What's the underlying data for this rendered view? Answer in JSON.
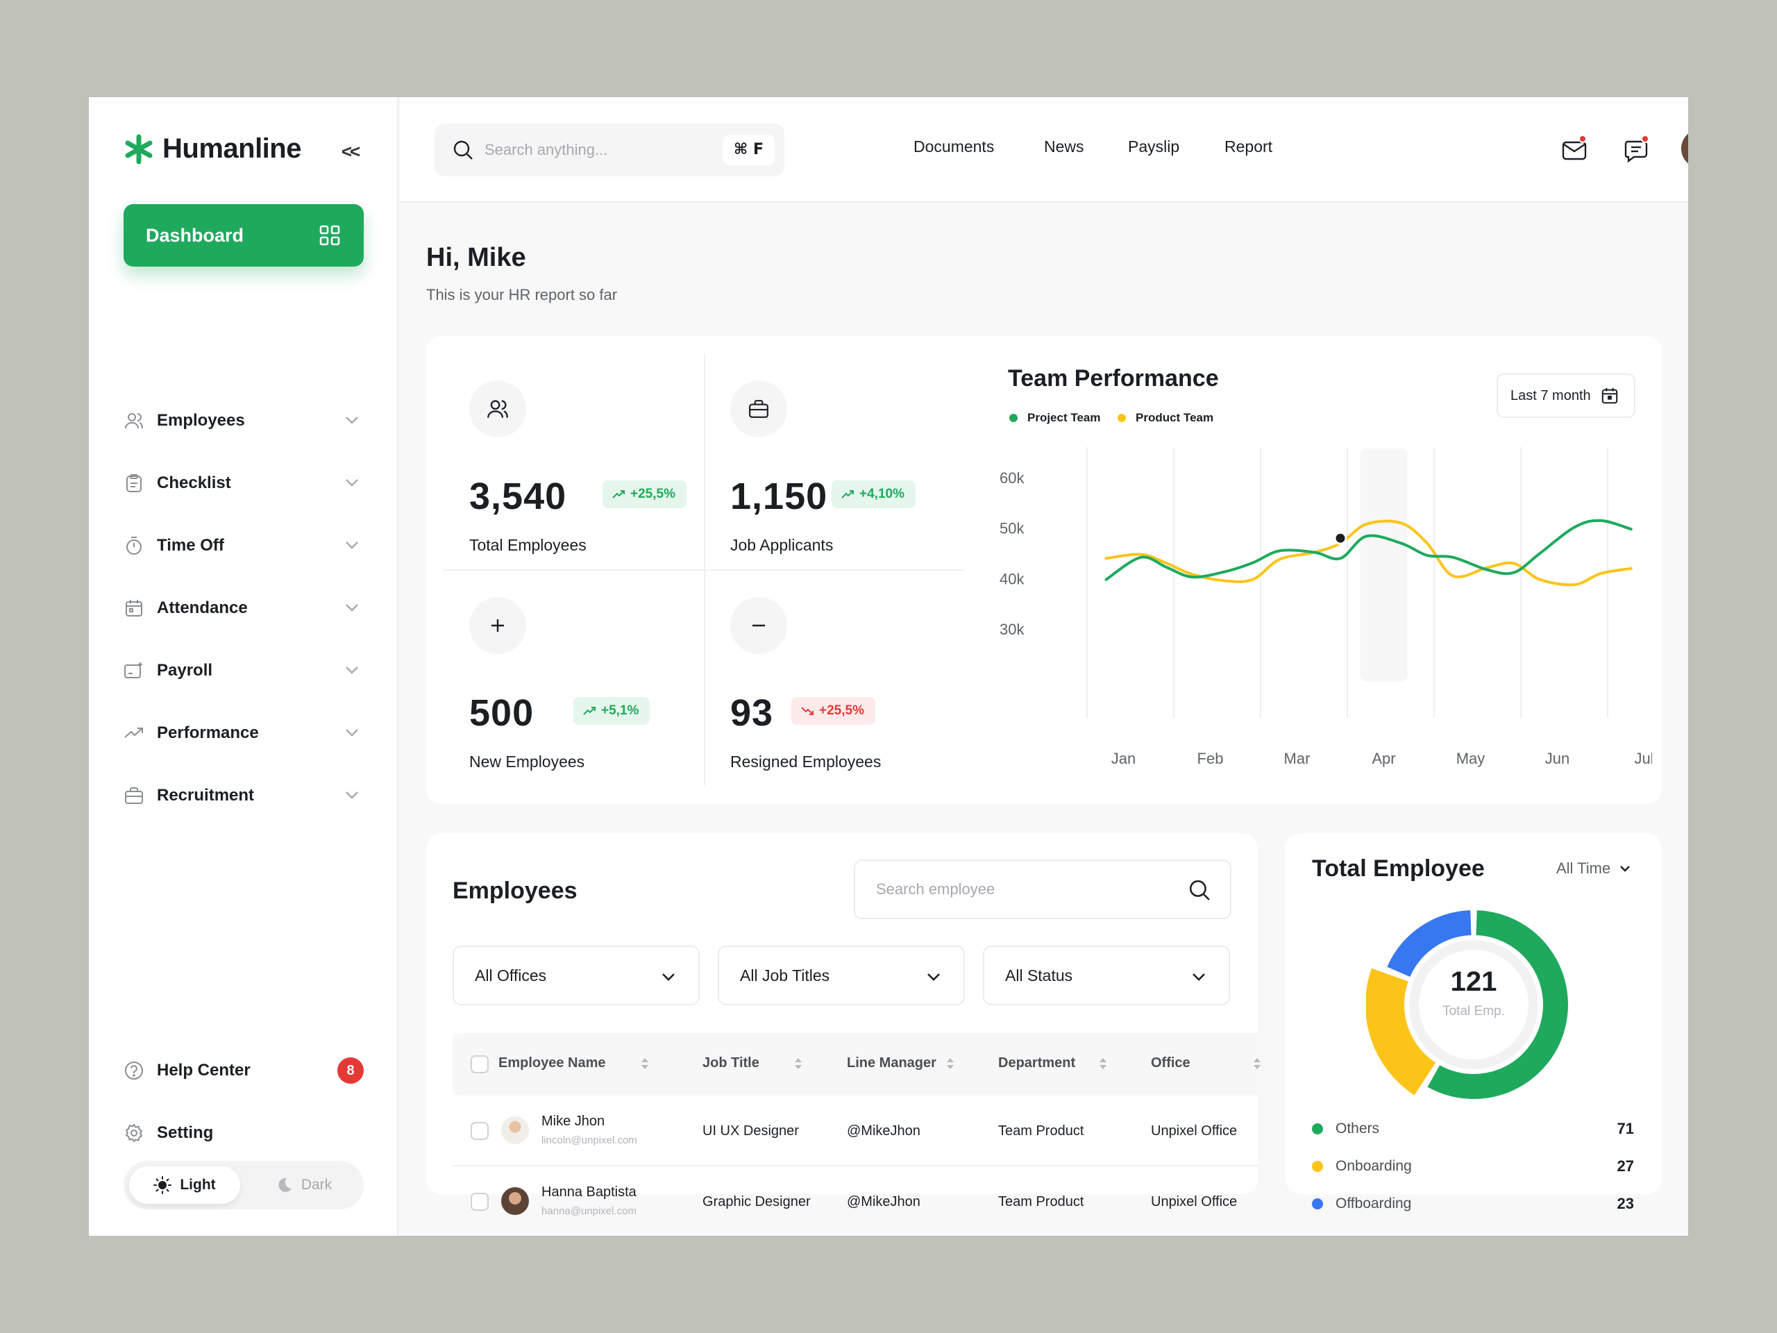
{
  "brand": {
    "name": "Humanline",
    "color": "#1FA95D"
  },
  "sidebar": {
    "collapse_label": "<<",
    "dashboard_label": "Dashboard",
    "items": [
      {
        "label": "Employees",
        "icon": "users-icon"
      },
      {
        "label": "Checklist",
        "icon": "clipboard-icon"
      },
      {
        "label": "Time Off",
        "icon": "stopwatch-icon"
      },
      {
        "label": "Attendance",
        "icon": "calendar-icon"
      },
      {
        "label": "Payroll",
        "icon": "payroll-icon"
      },
      {
        "label": "Performance",
        "icon": "trend-up-icon"
      },
      {
        "label": "Recruitment",
        "icon": "briefcase-icon"
      }
    ],
    "help_label": "Help Center",
    "help_badge": "8",
    "setting_label": "Setting",
    "theme_light": "Light",
    "theme_dark": "Dark"
  },
  "header": {
    "search_placeholder": "Search anything...",
    "shortcut": "⌘ F",
    "nav": [
      "Documents",
      "News",
      "Payslip",
      "Report"
    ]
  },
  "greeting": {
    "title": "Hi, Mike",
    "subtitle": "This is your HR report so far"
  },
  "stats": [
    {
      "value": "3,540",
      "change": "+25,5%",
      "trend": "up",
      "label": "Total  Employees",
      "icon": "users-icon"
    },
    {
      "value": "1,150",
      "change": "+4,10%",
      "trend": "up",
      "label": "Job Applicants",
      "icon": "briefcase-icon"
    },
    {
      "value": "500",
      "change": "+5,1%",
      "trend": "up",
      "label": "New  Employees",
      "icon": "plus-icon"
    },
    {
      "value": "93",
      "change": "+25,5%",
      "trend": "down",
      "label": "Resigned Employees",
      "icon": "minus-icon"
    }
  ],
  "chart_data": {
    "type": "line",
    "title": "Team Performance",
    "period_label": "Last 7 month",
    "categories": [
      "Jan",
      "Feb",
      "Mar",
      "Apr",
      "May",
      "Jun",
      "Jul"
    ],
    "x": [
      0.3,
      0.7,
      1,
      1.3,
      1.7,
      2,
      2.3,
      2.7,
      3,
      3.3,
      3.7,
      4,
      4.3,
      4.7,
      5,
      5.3,
      5.7,
      6,
      6.35
    ],
    "yticks": [
      "60k",
      "50k",
      "40k",
      "30k"
    ],
    "ylim": [
      30000,
      60000
    ],
    "legend_position": "top-left",
    "series": [
      {
        "name": "Project Team",
        "color": "#1FA95D",
        "values": [
          39800,
          44200,
          42200,
          40300,
          41500,
          43200,
          45500,
          45200,
          44000,
          48400,
          47000,
          44600,
          44200,
          41700,
          41200,
          45000,
          50200,
          51500,
          49800
        ]
      },
      {
        "name": "Product Team",
        "color": "#FCC419",
        "values": [
          44000,
          44800,
          43000,
          40800,
          39500,
          39900,
          43800,
          45200,
          47000,
          50800,
          51000,
          47000,
          40500,
          42200,
          43000,
          39800,
          38800,
          41000,
          42000
        ]
      }
    ],
    "highlight": {
      "x": 3,
      "y": 48000,
      "band_category": "Apr"
    }
  },
  "employees": {
    "title": "Employees",
    "search_placeholder": "Search employee",
    "filters": [
      "All Offices",
      "All Job Titles",
      "All Status"
    ],
    "columns": [
      "Employee Name",
      "Job Title",
      "Line Manager",
      "Department",
      "Office"
    ],
    "rows": [
      {
        "name": "Mike Jhon",
        "email": "lincoln@unpixel.com",
        "job": "UI UX Designer",
        "manager": "@MikeJhon",
        "department": "Team Product",
        "office": "Unpixel Office"
      },
      {
        "name": "Hanna Baptista",
        "email": "hanna@unpixel.com",
        "job": "Graphic Designer",
        "manager": "@MikeJhon",
        "department": "Team Product",
        "office": "Unpixel Office"
      }
    ]
  },
  "total_employee": {
    "title": "Total Employee",
    "time_filter": "All Time",
    "center_value": "121",
    "center_label": "Total Emp.",
    "breakdown": [
      {
        "label": "Others",
        "value": 71,
        "color": "#1FA95D"
      },
      {
        "label": "Onboarding",
        "value": 27,
        "color": "#FCC419"
      },
      {
        "label": "Offboarding",
        "value": 23,
        "color": "#3777F0"
      }
    ]
  }
}
